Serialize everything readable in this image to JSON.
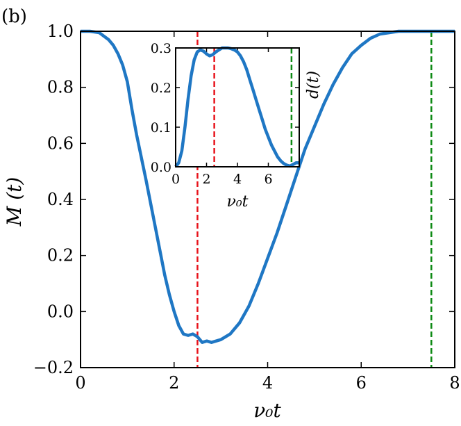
{
  "panel_label": "(b)",
  "colors": {
    "curve": "#1f77c4",
    "red_line": "#e8141c",
    "green_line": "#0d8a14",
    "axes": "#000000"
  },
  "chart_data": [
    {
      "type": "line",
      "xlabel": "ν₀t",
      "ylabel": "M (t)",
      "xlim": [
        0,
        8
      ],
      "ylim": [
        -0.2,
        1.0
      ],
      "x_ticks": [
        0,
        2,
        4,
        6,
        8
      ],
      "y_ticks": [
        -0.2,
        0.0,
        0.2,
        0.4,
        0.6,
        0.8,
        1.0
      ],
      "x_tick_labels": [
        "0",
        "2",
        "4",
        "6",
        "8"
      ],
      "y_tick_labels": [
        "−0.2",
        "0.0",
        "0.2",
        "0.4",
        "0.6",
        "0.8",
        "1.0"
      ],
      "series": [
        {
          "x": [
            0,
            0.2,
            0.4,
            0.6,
            0.7,
            0.8,
            0.9,
            1.0,
            1.1,
            1.2,
            1.4,
            1.6,
            1.8,
            1.9,
            2.0,
            2.1,
            2.2,
            2.3,
            2.4,
            2.5,
            2.6,
            2.7,
            2.8,
            3.0,
            3.2,
            3.4,
            3.6,
            3.8,
            4.0,
            4.2,
            4.4,
            4.6,
            4.8,
            5.0,
            5.2,
            5.4,
            5.6,
            5.8,
            6.0,
            6.2,
            6.4,
            6.6,
            6.8,
            7.0,
            7.5,
            8.0
          ],
          "y": [
            1.0,
            1.0,
            0.995,
            0.97,
            0.95,
            0.92,
            0.88,
            0.82,
            0.72,
            0.63,
            0.47,
            0.3,
            0.13,
            0.06,
            0.0,
            -0.05,
            -0.08,
            -0.085,
            -0.08,
            -0.09,
            -0.11,
            -0.105,
            -0.11,
            -0.1,
            -0.08,
            -0.04,
            0.02,
            0.1,
            0.19,
            0.28,
            0.38,
            0.48,
            0.58,
            0.66,
            0.74,
            0.81,
            0.87,
            0.92,
            0.95,
            0.975,
            0.99,
            0.995,
            1.0,
            1.0,
            1.0,
            1.0
          ]
        }
      ],
      "vlines": [
        {
          "x": 2.5,
          "color": "red",
          "style": "dashed"
        },
        {
          "x": 7.5,
          "color": "green",
          "style": "dashed"
        }
      ]
    },
    {
      "type": "line",
      "xlabel": "ν₀t",
      "ylabel": "d(t)",
      "xlim": [
        0,
        8
      ],
      "ylim": [
        0,
        0.3
      ],
      "x_ticks": [
        0,
        2,
        4,
        6
      ],
      "y_ticks": [
        0.0,
        0.1,
        0.2,
        0.3
      ],
      "x_tick_labels": [
        "0",
        "2",
        "4",
        "6"
      ],
      "y_tick_labels": [
        "0.0",
        "0.1",
        "0.2",
        "0.3"
      ],
      "series": [
        {
          "x": [
            0,
            0.2,
            0.4,
            0.6,
            0.8,
            1.0,
            1.2,
            1.4,
            1.6,
            1.8,
            2.0,
            2.2,
            2.4,
            2.6,
            2.8,
            3.0,
            3.2,
            3.4,
            3.6,
            3.8,
            4.0,
            4.2,
            4.4,
            4.6,
            4.8,
            5.0,
            5.2,
            5.4,
            5.6,
            5.8,
            6.0,
            6.2,
            6.4,
            6.6,
            6.8,
            7.0,
            7.2,
            7.4,
            7.6,
            7.8,
            8.0
          ],
          "y": [
            0.0,
            0.01,
            0.04,
            0.1,
            0.17,
            0.23,
            0.27,
            0.29,
            0.295,
            0.292,
            0.285,
            0.28,
            0.283,
            0.29,
            0.295,
            0.3,
            0.3,
            0.3,
            0.298,
            0.295,
            0.29,
            0.28,
            0.265,
            0.245,
            0.22,
            0.195,
            0.17,
            0.145,
            0.12,
            0.095,
            0.075,
            0.055,
            0.04,
            0.025,
            0.015,
            0.008,
            0.004,
            0.002,
            0.006,
            0.01,
            0.01
          ]
        }
      ],
      "vlines": [
        {
          "x": 2.5,
          "color": "red",
          "style": "dashed"
        },
        {
          "x": 7.5,
          "color": "green",
          "style": "dashed"
        }
      ]
    }
  ]
}
